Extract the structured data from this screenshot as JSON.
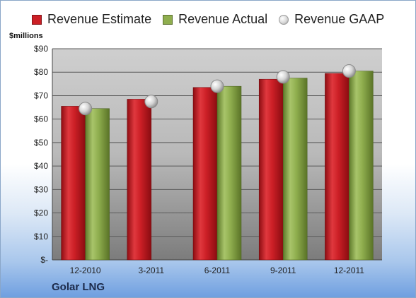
{
  "legend": {
    "estimate": "Revenue Estimate",
    "actual": "Revenue Actual",
    "gaap": "Revenue GAAP"
  },
  "units_label": "$millions",
  "company": "Golar LNG",
  "colors": {
    "estimate": "#cc1f26",
    "actual": "#8fae4e",
    "gaap": "#c8c8c8"
  },
  "chart_data": {
    "type": "bar",
    "title": "",
    "ylabel": "$millions",
    "ylim": [
      0,
      90
    ],
    "yticks": [
      0,
      10,
      20,
      30,
      40,
      50,
      60,
      70,
      80,
      90
    ],
    "ytick_labels": [
      "$-",
      "$10",
      "$20",
      "$30",
      "$40",
      "$50",
      "$60",
      "$70",
      "$80",
      "$90"
    ],
    "categories": [
      "12-2010",
      "3-2011",
      "6-2011",
      "9-2011",
      "12-2011"
    ],
    "series": [
      {
        "name": "Revenue Estimate",
        "type": "bar",
        "values": [
          65.5,
          68.5,
          73.5,
          77,
          79.5
        ]
      },
      {
        "name": "Revenue Actual",
        "type": "bar",
        "values": [
          64.5,
          null,
          74,
          77.5,
          80.5
        ]
      },
      {
        "name": "Revenue GAAP",
        "type": "marker",
        "values": [
          64.5,
          67.5,
          74,
          78,
          80.5
        ]
      }
    ],
    "grid": true,
    "legend_position": "top"
  }
}
